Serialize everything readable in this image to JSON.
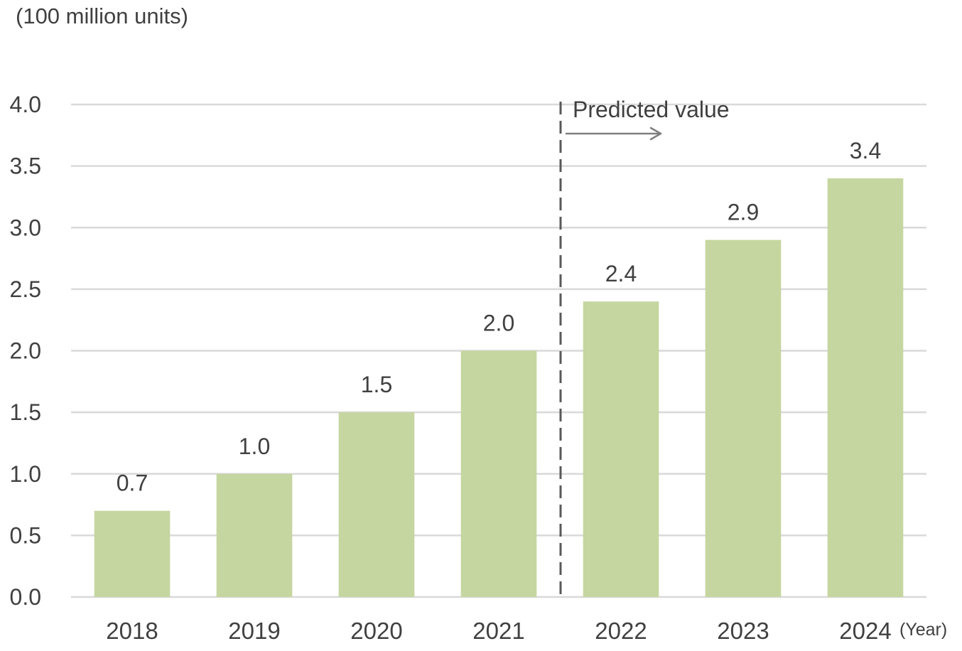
{
  "chart_data": {
    "type": "bar",
    "ylabel": "(100 million units)",
    "xlabel": "(Year)",
    "categories": [
      "2018",
      "2019",
      "2020",
      "2021",
      "2022",
      "2023",
      "2024"
    ],
    "values": [
      0.7,
      1.0,
      1.5,
      2.0,
      2.4,
      2.9,
      3.4
    ],
    "data_labels": [
      "0.7",
      "1.0",
      "1.5",
      "2.0",
      "2.4",
      "2.9",
      "3.4"
    ],
    "ylim": [
      0,
      4
    ],
    "yticks": [
      "0.0",
      "0.5",
      "1.0",
      "1.5",
      "2.0",
      "2.5",
      "3.0",
      "3.5",
      "4.0"
    ],
    "grid": true,
    "annotation": {
      "text": "Predicted value",
      "start_index": 4
    },
    "colors": {
      "bar": "#C5D6A0",
      "grid": "#D9D9D9",
      "text": "#404040",
      "divider": "#595959",
      "arrow": "#7F7F7F"
    }
  }
}
